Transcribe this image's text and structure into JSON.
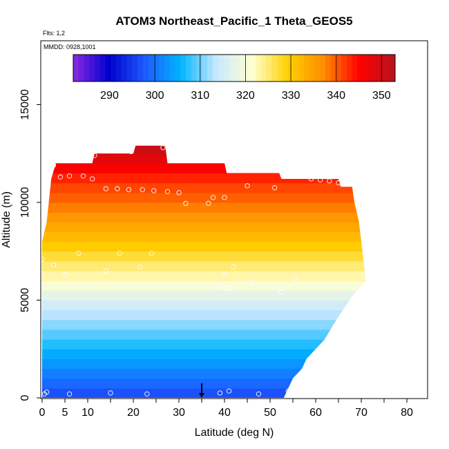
{
  "chart_data": {
    "type": "heatmap",
    "title": "ATOM3 Northeast_Pacific_1 Theta_GEOS5",
    "flights_note": "Flts: 1,2",
    "date_note": "MMDD: 0928,1001",
    "xlabel": "Latitude (deg N)",
    "ylabel": "Altitude (m)",
    "xlim": [
      0,
      85
    ],
    "ylim": [
      0,
      17500
    ],
    "x_ticks": [
      0,
      5,
      10,
      20,
      30,
      40,
      50,
      60,
      70,
      80
    ],
    "y_ticks": [
      0,
      5000,
      10000,
      15000
    ],
    "grid": false,
    "colorbar": {
      "placement": "top-inside",
      "min": 282,
      "max": 353,
      "ticks": [
        290,
        300,
        310,
        320,
        330,
        340,
        350
      ],
      "colors": [
        "#8a2be2",
        "#0000cd",
        "#1e5aff",
        "#00b4ff",
        "#c8e8ff",
        "#ffffd2",
        "#ffd000",
        "#ff8c00",
        "#ff0000",
        "#b4141e"
      ]
    },
    "field_envelope": {
      "columns": [
        {
          "lat": 0,
          "top_alt": 8000
        },
        {
          "lat": 1,
          "top_alt": 9000
        },
        {
          "lat": 2,
          "top_alt": 11200
        },
        {
          "lat": 3,
          "top_alt": 12000
        },
        {
          "lat": 11,
          "top_alt": 12000
        },
        {
          "lat": 11.5,
          "top_alt": 12500
        },
        {
          "lat": 20,
          "top_alt": 12500
        },
        {
          "lat": 20.5,
          "top_alt": 12900
        },
        {
          "lat": 27,
          "top_alt": 12900
        },
        {
          "lat": 27.5,
          "top_alt": 12000
        },
        {
          "lat": 40,
          "top_alt": 12000
        },
        {
          "lat": 40.5,
          "top_alt": 11500
        },
        {
          "lat": 52,
          "top_alt": 11500
        },
        {
          "lat": 52.5,
          "top_alt": 11200
        },
        {
          "lat": 65,
          "top_alt": 11200
        },
        {
          "lat": 65.5,
          "top_alt": 10800
        },
        {
          "lat": 68,
          "top_alt": 10800
        },
        {
          "lat": 68.5,
          "top_alt": 10000
        },
        {
          "lat": 69.5,
          "top_alt": 9000
        },
        {
          "lat": 70,
          "top_alt": 8000
        },
        {
          "lat": 70.5,
          "top_alt": 7000
        },
        {
          "lat": 71,
          "top_alt": 6000
        },
        {
          "lat": 68,
          "top_alt": 5200
        },
        {
          "lat": 66,
          "top_alt": 4500
        },
        {
          "lat": 64,
          "top_alt": 3800
        },
        {
          "lat": 62,
          "top_alt": 3000
        },
        {
          "lat": 60,
          "top_alt": 2500
        },
        {
          "lat": 58,
          "top_alt": 2000
        },
        {
          "lat": 57,
          "top_alt": 1500
        },
        {
          "lat": 55,
          "top_alt": 1000
        },
        {
          "lat": 54,
          "top_alt": 500
        },
        {
          "lat": 53,
          "top_alt": 0
        }
      ]
    },
    "theta_profile": [
      {
        "alt": 0,
        "theta": 296
      },
      {
        "alt": 1000,
        "theta": 300
      },
      {
        "alt": 2000,
        "theta": 304
      },
      {
        "alt": 3000,
        "theta": 308
      },
      {
        "alt": 4000,
        "theta": 312
      },
      {
        "alt": 5000,
        "theta": 316
      },
      {
        "alt": 6000,
        "theta": 322
      },
      {
        "alt": 7000,
        "theta": 326
      },
      {
        "alt": 8000,
        "theta": 331
      },
      {
        "alt": 9000,
        "theta": 335
      },
      {
        "alt": 10000,
        "theta": 339
      },
      {
        "alt": 11000,
        "theta": 342
      },
      {
        "alt": 12000,
        "theta": 347
      },
      {
        "alt": 13000,
        "theta": 352
      }
    ],
    "flight_points": [
      {
        "lat": 0.5,
        "alt": 200
      },
      {
        "lat": 1,
        "alt": 300
      },
      {
        "lat": 6,
        "alt": 200
      },
      {
        "lat": 15,
        "alt": 250
      },
      {
        "lat": 23,
        "alt": 200
      },
      {
        "lat": 39,
        "alt": 250
      },
      {
        "lat": 41,
        "alt": 350
      },
      {
        "lat": 47.5,
        "alt": 200
      },
      {
        "lat": 54,
        "alt": 350
      },
      {
        "lat": 0,
        "alt": 7100
      },
      {
        "lat": 2.5,
        "alt": 6800
      },
      {
        "lat": 5,
        "alt": 6300
      },
      {
        "lat": 8,
        "alt": 7400
      },
      {
        "lat": 14,
        "alt": 6500
      },
      {
        "lat": 17,
        "alt": 7400
      },
      {
        "lat": 21.5,
        "alt": 6700
      },
      {
        "lat": 24,
        "alt": 7400
      },
      {
        "lat": 39,
        "alt": 5700
      },
      {
        "lat": 40,
        "alt": 6300
      },
      {
        "lat": 40.5,
        "alt": 5600
      },
      {
        "lat": 42,
        "alt": 6700
      },
      {
        "lat": 46,
        "alt": 5900
      },
      {
        "lat": 52.5,
        "alt": 5400
      },
      {
        "lat": 55.5,
        "alt": 6100
      },
      {
        "lat": 70.5,
        "alt": 6200
      },
      {
        "lat": 2.5,
        "alt": 11900
      },
      {
        "lat": 4,
        "alt": 11300
      },
      {
        "lat": 6,
        "alt": 11350
      },
      {
        "lat": 9,
        "alt": 11350
      },
      {
        "lat": 11,
        "alt": 11200
      },
      {
        "lat": 11.5,
        "alt": 12400
      },
      {
        "lat": 14,
        "alt": 10700
      },
      {
        "lat": 16.5,
        "alt": 10700
      },
      {
        "lat": 19,
        "alt": 10650
      },
      {
        "lat": 19.5,
        "alt": 12600
      },
      {
        "lat": 22,
        "alt": 10650
      },
      {
        "lat": 24.5,
        "alt": 10600
      },
      {
        "lat": 26.5,
        "alt": 12800
      },
      {
        "lat": 27.5,
        "alt": 10550
      },
      {
        "lat": 29.5,
        "alt": 12400
      },
      {
        "lat": 30,
        "alt": 10500
      },
      {
        "lat": 31.5,
        "alt": 9950
      },
      {
        "lat": 36.5,
        "alt": 9950
      },
      {
        "lat": 37.5,
        "alt": 10250
      },
      {
        "lat": 40,
        "alt": 10250
      },
      {
        "lat": 45,
        "alt": 10850
      },
      {
        "lat": 51,
        "alt": 10750
      },
      {
        "lat": 59,
        "alt": 11200
      },
      {
        "lat": 61,
        "alt": 11150
      },
      {
        "lat": 63,
        "alt": 11100
      },
      {
        "lat": 65,
        "alt": 11000
      },
      {
        "lat": 66,
        "alt": 11050
      }
    ],
    "marker": {
      "lat": 35,
      "alt": 0,
      "symbol": "down-arrow"
    }
  }
}
